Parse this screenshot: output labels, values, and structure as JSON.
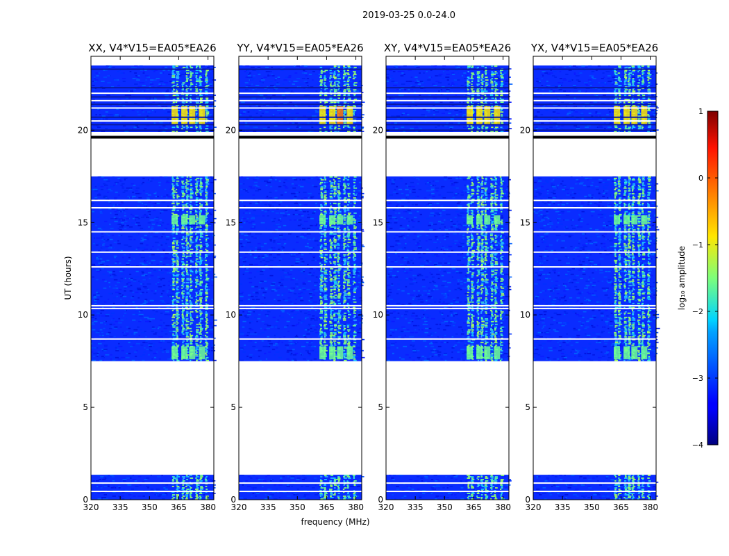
{
  "chart_data": {
    "type": "heatmap",
    "title": "2019-03-25 0.0-24.0",
    "xlabel": "frequency (MHz)",
    "ylabel": "UT (hours)",
    "xlim": [
      320,
      383
    ],
    "ylim": [
      0,
      24
    ],
    "xticks": [
      "320",
      "335",
      "350",
      "365",
      "380"
    ],
    "yticks": [
      "0",
      "5",
      "10",
      "15",
      "20"
    ],
    "panels": [
      {
        "title": "XX, V4*V15=EA05*EA26",
        "polarization": "XX"
      },
      {
        "title": "YY, V4*V15=EA05*EA26",
        "polarization": "YY"
      },
      {
        "title": "XY, V4*V15=EA05*EA26",
        "polarization": "XY"
      },
      {
        "title": "YX, V4*V15=EA05*EA26",
        "polarization": "YX"
      }
    ],
    "data_blocks_ut_hours": [
      [
        0.0,
        1.35
      ],
      [
        7.5,
        17.5
      ],
      [
        19.9,
        23.5
      ]
    ],
    "gap_lines_ut_hours": [
      0.45,
      0.9,
      8.7,
      10.35,
      10.5,
      12.6,
      13.4,
      14.5,
      15.8,
      16.2,
      20.5,
      21.2,
      21.6,
      22.0
    ],
    "rfi_channels_mhz": [
      362,
      364,
      367,
      369,
      371,
      374,
      376,
      379
    ],
    "colorbar": {
      "label": "log₁₀ amplitude",
      "range": [
        -4,
        1
      ],
      "ticks": [
        "1",
        "0",
        "−1",
        "−2",
        "−3",
        "−4"
      ],
      "colormap": "jet"
    }
  }
}
